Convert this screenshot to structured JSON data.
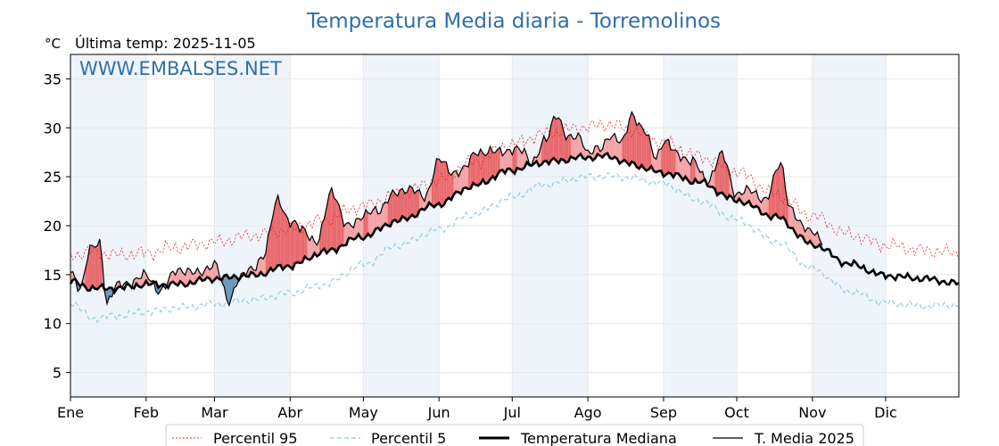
{
  "chart_data": {
    "type": "line",
    "title": "Temperatura Media diaria - Torremolinos",
    "unit_label": "°C",
    "last_temp_label": "Última temp: 2025-11-05",
    "watermark": "WWW.EMBALSES.NET",
    "ylim": [
      2.5,
      37.5
    ],
    "xlim": [
      1,
      365
    ],
    "y_ticks": [
      5,
      10,
      15,
      20,
      25,
      30,
      35
    ],
    "month_labels": [
      "Ene",
      "Feb",
      "Mar",
      "Abr",
      "May",
      "Jun",
      "Jul",
      "Ago",
      "Sep",
      "Oct",
      "Nov",
      "Dic"
    ],
    "month_start_days": [
      1,
      32,
      60,
      91,
      121,
      152,
      182,
      213,
      244,
      274,
      305,
      335
    ],
    "grid": true,
    "legend_position": "bottom",
    "colors": {
      "title": "#2f6fa7",
      "p95": "#e8262a",
      "p5": "#8ec7df",
      "median": "#000000",
      "year": "#000000",
      "above_fill": "#f4a3a6",
      "above_fill_strong": "#e86a6e",
      "below_fill": "#6b95b9",
      "band": "#eef4fa"
    },
    "series": [
      {
        "name": "Percentil 95",
        "key": "p95",
        "anchors_x": [
          1,
          10,
          20,
          32,
          45,
          60,
          75,
          91,
          105,
          121,
          135,
          152,
          165,
          182,
          195,
          213,
          222,
          230,
          244,
          258,
          274,
          290,
          305,
          320,
          335,
          350,
          365
        ],
        "anchors_y": [
          17.0,
          17.3,
          17.0,
          17.2,
          17.8,
          18.3,
          19.0,
          19.6,
          20.6,
          22.0,
          23.2,
          24.6,
          26.4,
          28.3,
          29.4,
          30.1,
          30.4,
          29.8,
          28.5,
          27.1,
          25.5,
          23.2,
          21.0,
          19.1,
          18.0,
          17.5,
          17.2
        ],
        "noise": 0.9
      },
      {
        "name": "Percentil 5",
        "key": "p5",
        "anchors_x": [
          1,
          10,
          20,
          32,
          45,
          60,
          75,
          91,
          105,
          121,
          135,
          152,
          165,
          182,
          195,
          213,
          222,
          230,
          244,
          258,
          274,
          290,
          305,
          320,
          335,
          350,
          365
        ],
        "anchors_y": [
          12.2,
          10.5,
          10.8,
          11.2,
          11.6,
          12.0,
          12.4,
          13.1,
          14.0,
          16.0,
          18.0,
          19.6,
          21.1,
          22.9,
          24.2,
          25.0,
          25.1,
          24.9,
          24.3,
          22.6,
          20.6,
          18.4,
          15.6,
          13.3,
          12.1,
          11.8,
          11.9
        ],
        "noise": 0.5
      },
      {
        "name": "Temperatura Mediana",
        "key": "median",
        "anchors_x": [
          1,
          10,
          20,
          32,
          45,
          60,
          75,
          91,
          105,
          121,
          135,
          152,
          165,
          182,
          195,
          213,
          222,
          230,
          244,
          258,
          274,
          290,
          305,
          320,
          335,
          350,
          365
        ],
        "anchors_y": [
          14.3,
          13.6,
          13.6,
          14.0,
          14.0,
          14.6,
          14.9,
          15.9,
          17.3,
          18.9,
          20.5,
          22.2,
          24.0,
          25.7,
          26.5,
          27.0,
          27.1,
          26.3,
          25.4,
          24.5,
          22.6,
          20.9,
          18.1,
          16.1,
          14.9,
          14.6,
          14.1
        ],
        "noise": 0.45
      },
      {
        "name": "T. Media 2025",
        "key": "year",
        "anchors_x": [
          1,
          5,
          9,
          13,
          16,
          20,
          25,
          32,
          38,
          45,
          52,
          60,
          66,
          70,
          75,
          80,
          86,
          91,
          96,
          102,
          108,
          114,
          121,
          127,
          133,
          140,
          146,
          152,
          157,
          162,
          168,
          175,
          182,
          186,
          190,
          196,
          200,
          205,
          210,
          213,
          218,
          222,
          227,
          231,
          236,
          241,
          244,
          250,
          256,
          262,
          268,
          274,
          280,
          286,
          292,
          296,
          300,
          305,
          309
        ],
        "anchors_y": [
          15.2,
          13.7,
          17.5,
          18.2,
          12.2,
          13.8,
          14.2,
          14.9,
          13.3,
          15.6,
          15.1,
          16.0,
          12.4,
          14.5,
          15.6,
          16.8,
          22.8,
          20.2,
          19.8,
          18.1,
          23.7,
          19.9,
          21.0,
          21.6,
          23.1,
          23.9,
          22.8,
          26.8,
          25.4,
          25.8,
          27.6,
          27.5,
          27.8,
          27.6,
          26.6,
          28.7,
          31.5,
          28.8,
          29.2,
          27.4,
          27.8,
          29.3,
          28.4,
          31.5,
          29.6,
          27.1,
          28.6,
          27.3,
          26.5,
          24.6,
          27.2,
          23.2,
          23.6,
          22.6,
          26.5,
          21.7,
          20.1,
          19.6,
          18.1
        ],
        "noise": 0.7
      }
    ]
  }
}
